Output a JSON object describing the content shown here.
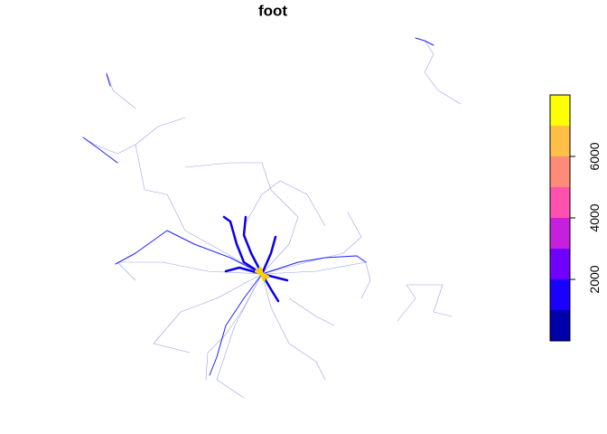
{
  "chart_data": {
    "type": "map",
    "title": "foot",
    "legend": {
      "breaks": [
        0,
        1000,
        2000,
        3000,
        4000,
        5000,
        6000,
        7000,
        8000
      ],
      "colors": [
        "#0000aa",
        "#1a00ff",
        "#7000ff",
        "#c620de",
        "#ff50b0",
        "#ff8a78",
        "#ffbe46",
        "#ffff00"
      ],
      "ticks": [
        2000,
        4000,
        6000
      ]
    }
  }
}
